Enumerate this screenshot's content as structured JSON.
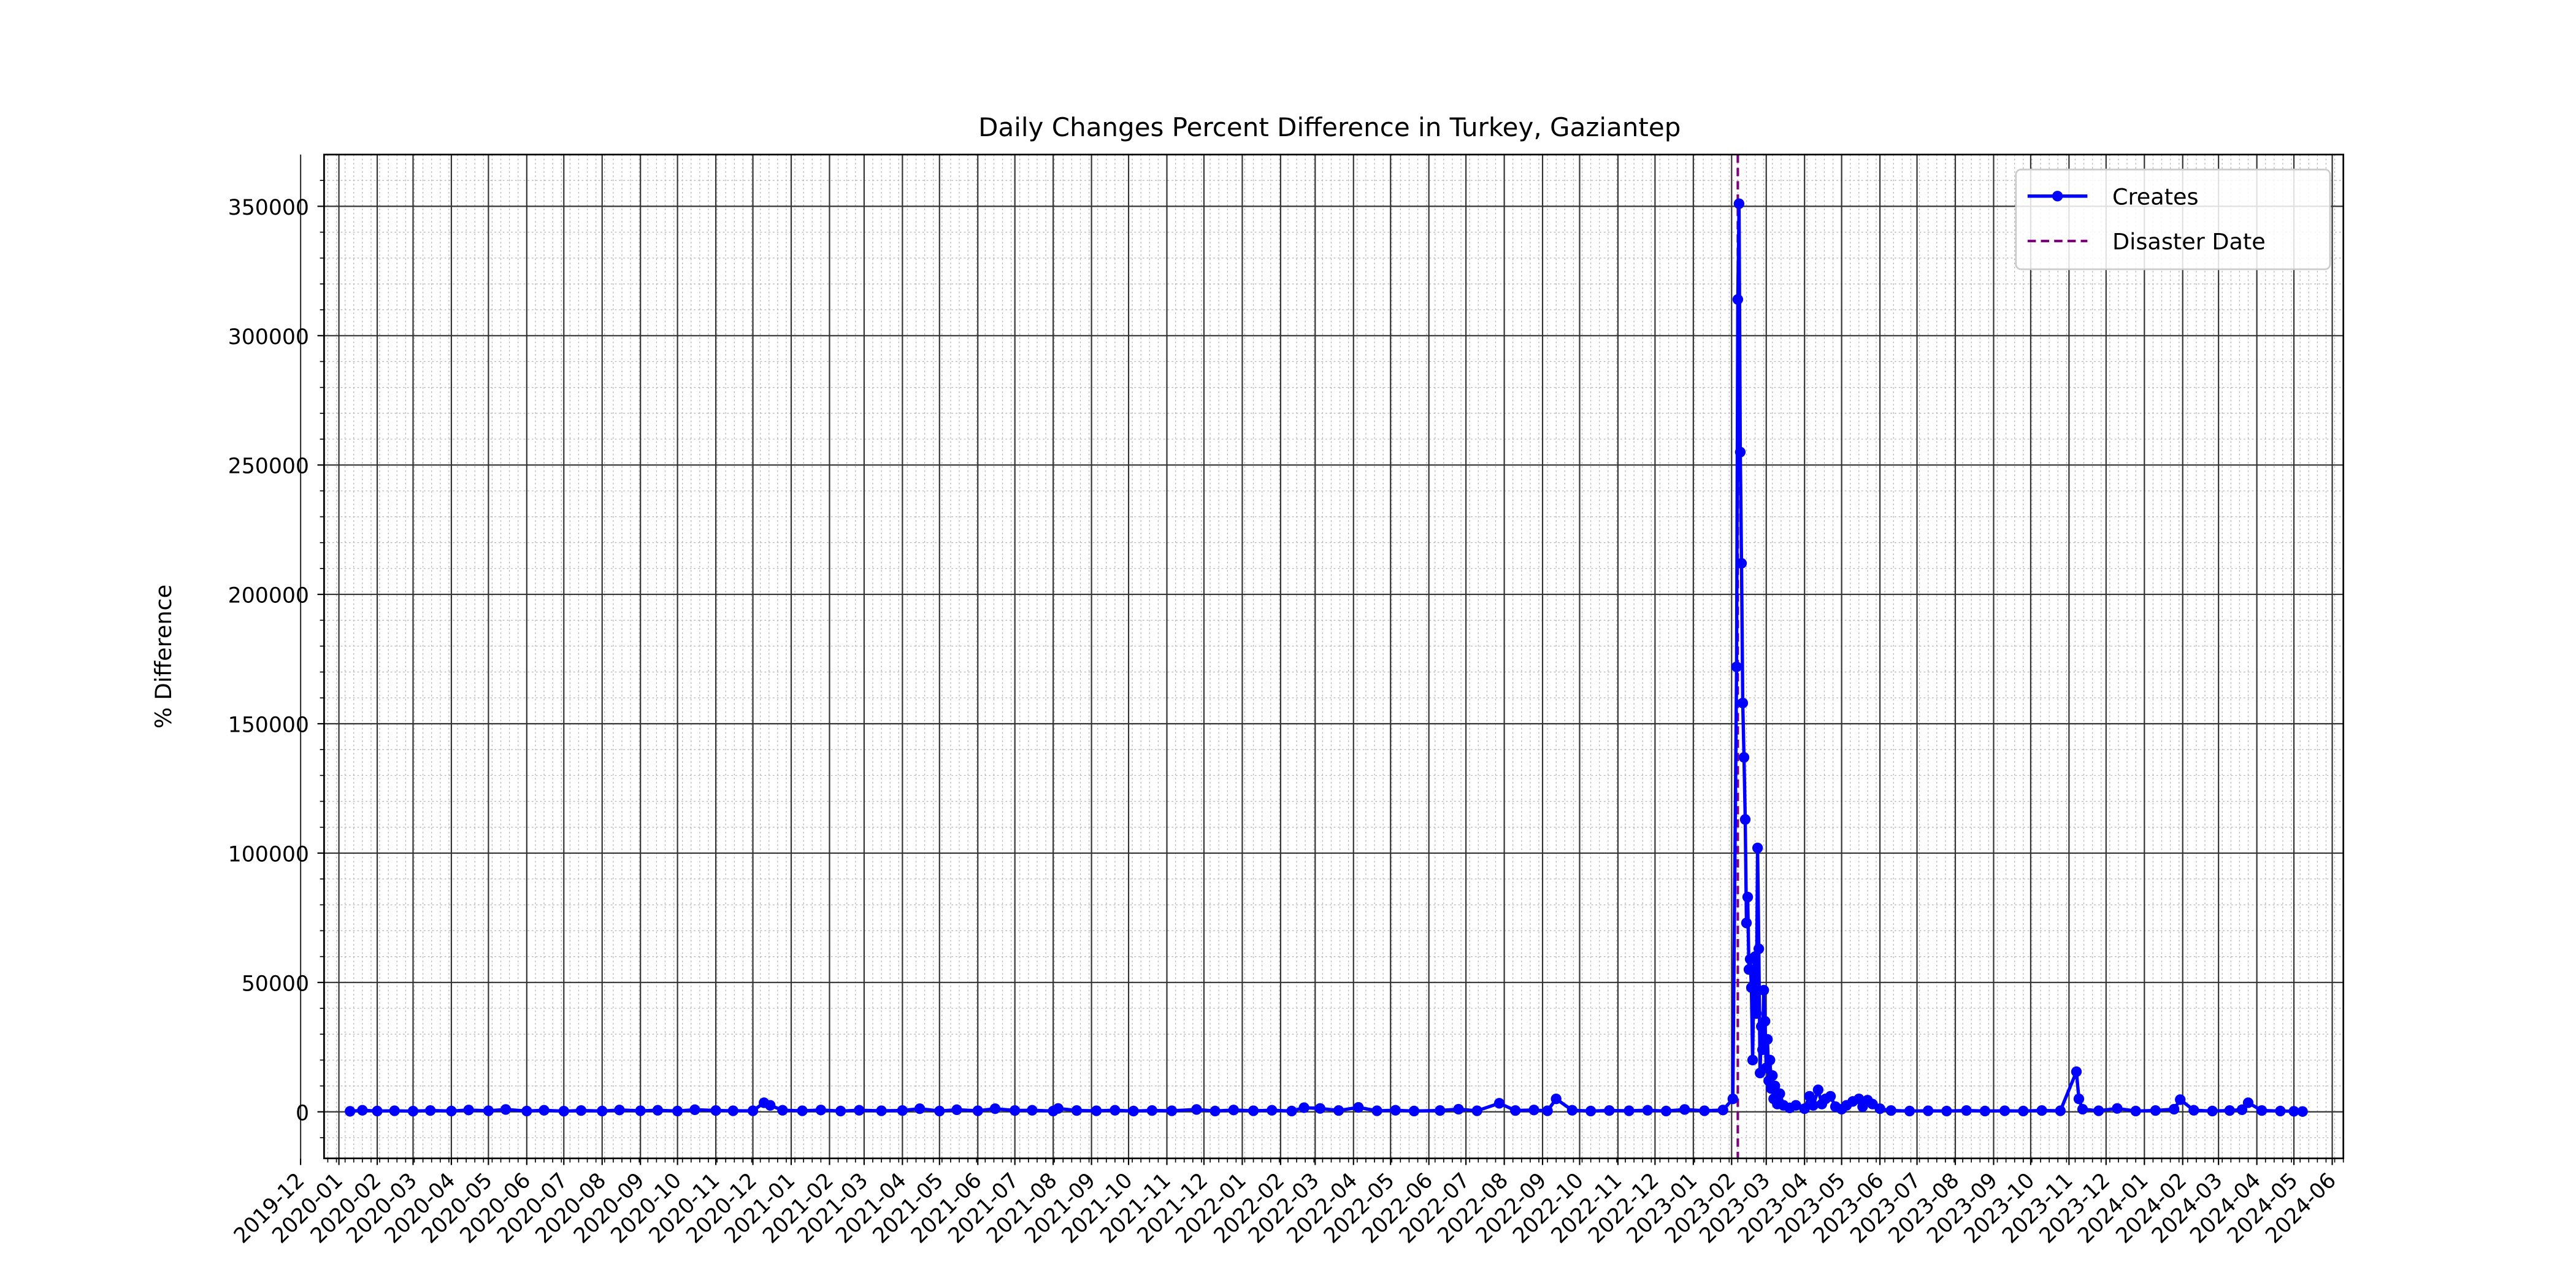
{
  "chart_data": {
    "type": "line",
    "title": "Daily Changes Percent Difference in Turkey, Gaziantep",
    "xlabel": "",
    "ylabel": "% Difference",
    "x_axis": {
      "type": "date",
      "range": [
        "2019-12-20",
        "2024-06-10"
      ],
      "tick_labels": [
        "2019-12",
        "2020-01",
        "2020-02",
        "2020-03",
        "2020-04",
        "2020-05",
        "2020-06",
        "2020-07",
        "2020-08",
        "2020-09",
        "2020-10",
        "2020-11",
        "2020-12",
        "2021-01",
        "2021-02",
        "2021-03",
        "2021-04",
        "2021-05",
        "2021-06",
        "2021-07",
        "2021-08",
        "2021-09",
        "2021-10",
        "2021-11",
        "2021-12",
        "2022-01",
        "2022-02",
        "2022-03",
        "2022-04",
        "2022-05",
        "2022-06",
        "2022-07",
        "2022-08",
        "2022-09",
        "2022-10",
        "2022-11",
        "2022-12",
        "2023-01",
        "2023-02",
        "2023-03",
        "2023-04",
        "2023-05",
        "2023-06",
        "2023-07",
        "2023-08",
        "2023-09",
        "2023-10",
        "2023-11",
        "2023-12",
        "2024-01",
        "2024-02",
        "2024-03",
        "2024-04",
        "2024-05",
        "2024-06"
      ]
    },
    "y_axis": {
      "range": [
        -18000,
        370000
      ],
      "tick_values": [
        0,
        50000,
        100000,
        150000,
        200000,
        250000,
        300000,
        350000
      ],
      "tick_labels": [
        "0",
        "50000",
        "100000",
        "150000",
        "200000",
        "250000",
        "300000",
        "350000"
      ]
    },
    "grid": true,
    "legend_placement": "top-right",
    "series": [
      {
        "name": "Creates",
        "color": "#0000ff",
        "marker": "circle",
        "points": [
          [
            "2020-01-10",
            200
          ],
          [
            "2020-01-20",
            600
          ],
          [
            "2020-02-01",
            300
          ],
          [
            "2020-02-15",
            400
          ],
          [
            "2020-03-01",
            250
          ],
          [
            "2020-03-15",
            500
          ],
          [
            "2020-04-01",
            300
          ],
          [
            "2020-04-15",
            700
          ],
          [
            "2020-05-01",
            400
          ],
          [
            "2020-05-15",
            900
          ],
          [
            "2020-06-01",
            300
          ],
          [
            "2020-06-15",
            600
          ],
          [
            "2020-07-01",
            250
          ],
          [
            "2020-07-15",
            500
          ],
          [
            "2020-08-01",
            300
          ],
          [
            "2020-08-15",
            700
          ],
          [
            "2020-09-01",
            400
          ],
          [
            "2020-09-15",
            600
          ],
          [
            "2020-10-01",
            300
          ],
          [
            "2020-10-15",
            800
          ],
          [
            "2020-11-01",
            500
          ],
          [
            "2020-11-15",
            400
          ],
          [
            "2020-12-01",
            400
          ],
          [
            "2020-12-10",
            3500
          ],
          [
            "2020-12-15",
            2500
          ],
          [
            "2020-12-25",
            600
          ],
          [
            "2021-01-10",
            400
          ],
          [
            "2021-01-25",
            700
          ],
          [
            "2021-02-10",
            300
          ],
          [
            "2021-02-25",
            600
          ],
          [
            "2021-03-15",
            400
          ],
          [
            "2021-04-01",
            500
          ],
          [
            "2021-04-15",
            1200
          ],
          [
            "2021-05-01",
            300
          ],
          [
            "2021-05-15",
            800
          ],
          [
            "2021-06-01",
            400
          ],
          [
            "2021-06-15",
            1200
          ],
          [
            "2021-07-01",
            500
          ],
          [
            "2021-07-15",
            600
          ],
          [
            "2021-08-01",
            300
          ],
          [
            "2021-08-05",
            1300
          ],
          [
            "2021-08-20",
            500
          ],
          [
            "2021-09-05",
            400
          ],
          [
            "2021-09-20",
            600
          ],
          [
            "2021-10-05",
            300
          ],
          [
            "2021-10-20",
            500
          ],
          [
            "2021-11-05",
            400
          ],
          [
            "2021-11-25",
            900
          ],
          [
            "2021-12-10",
            300
          ],
          [
            "2021-12-25",
            700
          ],
          [
            "2022-01-10",
            400
          ],
          [
            "2022-01-25",
            600
          ],
          [
            "2022-02-10",
            300
          ],
          [
            "2022-02-20",
            1600
          ],
          [
            "2022-03-05",
            1300
          ],
          [
            "2022-03-20",
            500
          ],
          [
            "2022-04-05",
            1700
          ],
          [
            "2022-04-20",
            400
          ],
          [
            "2022-05-05",
            600
          ],
          [
            "2022-05-20",
            300
          ],
          [
            "2022-06-10",
            500
          ],
          [
            "2022-06-25",
            1000
          ],
          [
            "2022-07-10",
            400
          ],
          [
            "2022-07-28",
            3300
          ],
          [
            "2022-08-10",
            500
          ],
          [
            "2022-08-25",
            700
          ],
          [
            "2022-09-05",
            400
          ],
          [
            "2022-09-12",
            5000
          ],
          [
            "2022-09-25",
            600
          ],
          [
            "2022-10-10",
            300
          ],
          [
            "2022-10-25",
            500
          ],
          [
            "2022-11-10",
            400
          ],
          [
            "2022-11-25",
            600
          ],
          [
            "2022-12-10",
            300
          ],
          [
            "2022-12-25",
            900
          ],
          [
            "2023-01-10",
            400
          ],
          [
            "2023-01-25",
            700
          ],
          [
            "2023-02-02",
            5000
          ],
          [
            "2023-02-05",
            172000
          ],
          [
            "2023-02-06",
            314000
          ],
          [
            "2023-02-07",
            351000
          ],
          [
            "2023-02-08",
            255000
          ],
          [
            "2023-02-09",
            212000
          ],
          [
            "2023-02-10",
            158000
          ],
          [
            "2023-02-11",
            137000
          ],
          [
            "2023-02-12",
            113000
          ],
          [
            "2023-02-13",
            73000
          ],
          [
            "2023-02-14",
            83000
          ],
          [
            "2023-02-15",
            55000
          ],
          [
            "2023-02-16",
            59000
          ],
          [
            "2023-02-17",
            48000
          ],
          [
            "2023-02-18",
            20000
          ],
          [
            "2023-02-19",
            55000
          ],
          [
            "2023-02-20",
            60000
          ],
          [
            "2023-02-21",
            38000
          ],
          [
            "2023-02-22",
            102000
          ],
          [
            "2023-02-23",
            63000
          ],
          [
            "2023-02-24",
            15000
          ],
          [
            "2023-02-25",
            33000
          ],
          [
            "2023-02-26",
            24000
          ],
          [
            "2023-02-27",
            47000
          ],
          [
            "2023-02-28",
            35000
          ],
          [
            "2023-03-01",
            17000
          ],
          [
            "2023-03-02",
            28000
          ],
          [
            "2023-03-03",
            12000
          ],
          [
            "2023-03-04",
            20000
          ],
          [
            "2023-03-05",
            9000
          ],
          [
            "2023-03-06",
            14000
          ],
          [
            "2023-03-07",
            5000
          ],
          [
            "2023-03-08",
            10000
          ],
          [
            "2023-03-10",
            3000
          ],
          [
            "2023-03-12",
            7000
          ],
          [
            "2023-03-15",
            2500
          ],
          [
            "2023-03-20",
            1500
          ],
          [
            "2023-03-25",
            2500
          ],
          [
            "2023-04-01",
            1200
          ],
          [
            "2023-04-05",
            6000
          ],
          [
            "2023-04-08",
            2500
          ],
          [
            "2023-04-12",
            8500
          ],
          [
            "2023-04-15",
            3000
          ],
          [
            "2023-04-18",
            5000
          ],
          [
            "2023-04-22",
            6000
          ],
          [
            "2023-04-26",
            2000
          ],
          [
            "2023-05-01",
            1000
          ],
          [
            "2023-05-05",
            2500
          ],
          [
            "2023-05-10",
            4000
          ],
          [
            "2023-05-15",
            5000
          ],
          [
            "2023-05-18",
            2000
          ],
          [
            "2023-05-22",
            4500
          ],
          [
            "2023-05-26",
            3000
          ],
          [
            "2023-06-01",
            1200
          ],
          [
            "2023-06-10",
            500
          ],
          [
            "2023-06-25",
            300
          ],
          [
            "2023-07-10",
            400
          ],
          [
            "2023-07-25",
            300
          ],
          [
            "2023-08-10",
            500
          ],
          [
            "2023-08-25",
            300
          ],
          [
            "2023-09-10",
            400
          ],
          [
            "2023-09-25",
            300
          ],
          [
            "2023-10-10",
            500
          ],
          [
            "2023-10-25",
            400
          ],
          [
            "2023-11-07",
            15500
          ],
          [
            "2023-11-09",
            5000
          ],
          [
            "2023-11-12",
            1000
          ],
          [
            "2023-11-25",
            400
          ],
          [
            "2023-12-10",
            1300
          ],
          [
            "2023-12-25",
            300
          ],
          [
            "2024-01-10",
            500
          ],
          [
            "2024-01-25",
            1000
          ],
          [
            "2024-01-30",
            4700
          ],
          [
            "2024-02-10",
            600
          ],
          [
            "2024-02-25",
            300
          ],
          [
            "2024-03-10",
            500
          ],
          [
            "2024-03-20",
            800
          ],
          [
            "2024-03-25",
            3500
          ],
          [
            "2024-04-05",
            500
          ],
          [
            "2024-04-20",
            300
          ],
          [
            "2024-05-01",
            200
          ],
          [
            "2024-05-08",
            100
          ]
        ]
      }
    ],
    "reference_lines": [
      {
        "name": "Disaster Date",
        "type": "vertical",
        "x": "2023-02-06",
        "color": "#800080",
        "style": "dashed"
      }
    ]
  }
}
